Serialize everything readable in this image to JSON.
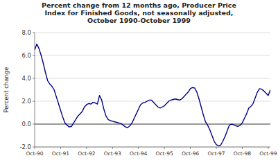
{
  "chart_data": {
    "type": "line",
    "title": "Percent change from 12 months ago, Producer Price\nIndex for Finished Goods, not seasonally adjusted,\nOctober 1990-October 1999",
    "ylabel": "Percent change",
    "categories": [
      "Oct-90",
      null,
      null,
      null,
      null,
      null,
      null,
      null,
      null,
      null,
      null,
      null,
      "Oct-91",
      null,
      null,
      null,
      null,
      null,
      null,
      null,
      null,
      null,
      null,
      null,
      "Oct-92",
      null,
      null,
      null,
      null,
      null,
      null,
      null,
      null,
      null,
      null,
      null,
      "Oct-93",
      null,
      null,
      null,
      null,
      null,
      null,
      null,
      null,
      null,
      null,
      null,
      "Oct-94",
      null,
      null,
      null,
      null,
      null,
      null,
      null,
      null,
      null,
      null,
      null,
      "Oct-95",
      null,
      null,
      null,
      null,
      null,
      null,
      null,
      null,
      null,
      null,
      null,
      "Oct-96",
      null,
      null,
      null,
      null,
      null,
      null,
      null,
      null,
      null,
      null,
      null,
      "Oct-97",
      null,
      null,
      null,
      null,
      null,
      null,
      null,
      null,
      null,
      null,
      null,
      "Oct-98",
      null,
      null,
      null,
      null,
      null,
      null,
      null,
      null,
      null,
      null,
      null,
      "Oct-99",
      null
    ],
    "values": [
      6.5,
      7.0,
      6.6,
      6.0,
      5.3,
      4.5,
      3.8,
      3.5,
      3.3,
      3.0,
      2.4,
      1.8,
      1.2,
      0.6,
      0.1,
      -0.1,
      -0.25,
      -0.2,
      0.1,
      0.4,
      0.7,
      0.9,
      1.1,
      1.5,
      1.7,
      1.8,
      1.75,
      1.9,
      1.85,
      1.75,
      2.5,
      2.1,
      1.3,
      0.7,
      0.4,
      0.3,
      0.25,
      0.2,
      0.15,
      0.1,
      0.05,
      -0.1,
      -0.25,
      -0.3,
      -0.15,
      0.1,
      0.5,
      0.9,
      1.3,
      1.7,
      1.85,
      1.9,
      2.0,
      2.1,
      2.1,
      1.9,
      1.7,
      1.5,
      1.4,
      1.5,
      1.6,
      1.8,
      2.0,
      2.1,
      2.15,
      2.2,
      2.15,
      2.1,
      2.2,
      2.4,
      2.6,
      2.8,
      3.1,
      3.2,
      3.15,
      2.8,
      2.2,
      1.5,
      0.8,
      0.2,
      -0.1,
      -0.5,
      -1.0,
      -1.5,
      -1.8,
      -1.9,
      -1.85,
      -1.5,
      -1.1,
      -0.6,
      -0.1,
      0.0,
      -0.05,
      -0.15,
      -0.2,
      -0.1,
      0.1,
      0.5,
      0.9,
      1.4,
      1.55,
      1.8,
      2.3,
      2.8,
      3.1,
      3.05,
      2.9,
      2.7,
      2.5,
      3.0
    ],
    "color": "#00008B",
    "ylim": [
      -2.0,
      8.0
    ],
    "yticks": [
      {
        "value": -2.0,
        "label": "-2.0"
      },
      {
        "value": 0.0,
        "label": "0.0"
      },
      {
        "value": 2.0,
        "label": "2.0"
      },
      {
        "value": 4.0,
        "label": "4.0"
      },
      {
        "value": 6.0,
        "label": "6.0"
      },
      {
        "value": 8.0,
        "label": "8.0"
      }
    ],
    "grid": true
  }
}
